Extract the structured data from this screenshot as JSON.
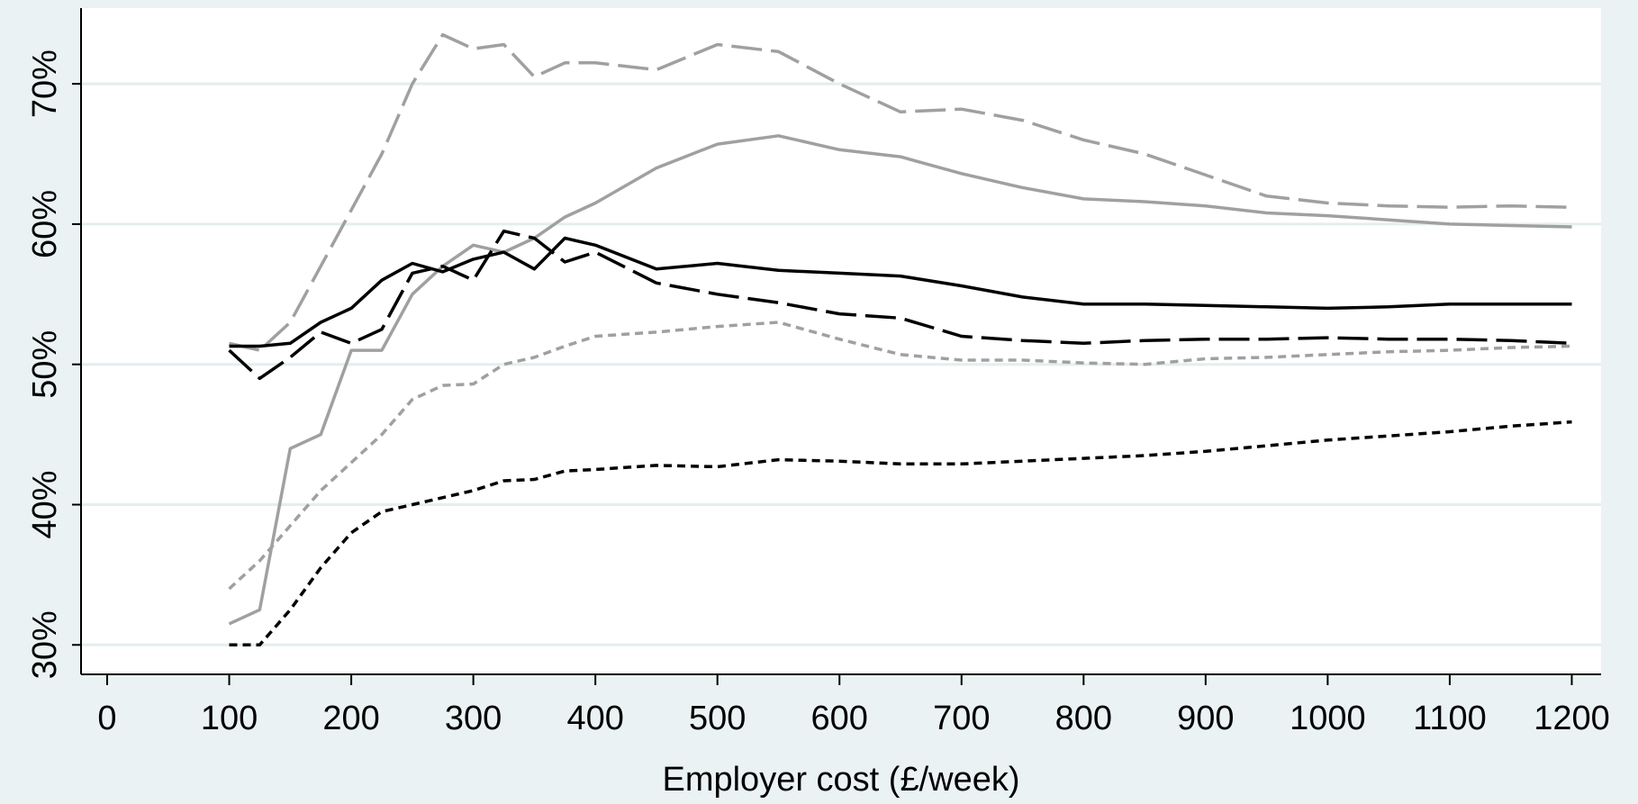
{
  "chart_data": {
    "type": "line",
    "xlabel": "Employer cost (£/week)",
    "x": [
      100,
      125,
      150,
      175,
      200,
      225,
      250,
      275,
      300,
      325,
      350,
      375,
      400,
      450,
      500,
      550,
      600,
      650,
      700,
      750,
      800,
      850,
      900,
      950,
      1000,
      1050,
      1100,
      1150,
      1200
    ],
    "series": [
      {
        "color": "#a0a0a0",
        "dash": "long",
        "values": [
          51.5,
          51,
          53,
          57,
          61,
          65,
          70,
          73.5,
          72.5,
          72.8,
          70.5,
          71.5,
          71.5,
          71,
          72.8,
          72.3,
          70,
          68,
          68.2,
          67.4,
          66,
          65,
          63.5,
          62,
          61.5,
          61.3,
          61.2,
          61.3,
          61.2
        ]
      },
      {
        "color": "#a0a0a0",
        "dash": "solid",
        "values": [
          31.5,
          32.5,
          44,
          45,
          51,
          51,
          55,
          57,
          58.5,
          58,
          59,
          60.5,
          61.5,
          64,
          65.7,
          66.3,
          65.3,
          64.8,
          63.6,
          62.6,
          61.8,
          61.6,
          61.3,
          60.8,
          60.6,
          60.3,
          60,
          59.9,
          59.8
        ]
      },
      {
        "color": "#a0a0a0",
        "dash": "short",
        "values": [
          34,
          36,
          38.5,
          41,
          43,
          45,
          47.5,
          48.5,
          48.6,
          50,
          50.5,
          51.3,
          52,
          52.3,
          52.7,
          53,
          51.8,
          50.7,
          50.3,
          50.3,
          50.1,
          50,
          50.4,
          50.5,
          50.7,
          50.9,
          51,
          51.2,
          51.3
        ]
      },
      {
        "color": "#000000",
        "dash": "solid",
        "values": [
          51.3,
          51.3,
          51.5,
          53,
          54,
          56,
          57.2,
          56.6,
          57.5,
          58,
          56.8,
          59,
          58.5,
          56.8,
          57.2,
          56.7,
          56.5,
          56.3,
          55.6,
          54.8,
          54.3,
          54.3,
          54.2,
          54.1,
          54,
          54.1,
          54.3,
          54.3,
          54.3
        ]
      },
      {
        "color": "#000000",
        "dash": "long",
        "values": [
          51,
          49,
          50.5,
          52.3,
          51.5,
          52.5,
          56.5,
          57,
          56,
          59.5,
          59,
          57.3,
          58,
          55.8,
          55,
          54.4,
          53.6,
          53.3,
          52,
          51.7,
          51.5,
          51.7,
          51.8,
          51.8,
          51.9,
          51.8,
          51.8,
          51.7,
          51.5
        ]
      },
      {
        "color": "#000000",
        "dash": "short",
        "values": [
          30,
          30,
          32.5,
          35.5,
          38,
          39.5,
          40,
          40.5,
          41,
          41.7,
          41.8,
          42.4,
          42.5,
          42.8,
          42.7,
          43.2,
          43.1,
          42.9,
          42.9,
          43.1,
          43.3,
          43.5,
          43.8,
          44.2,
          44.6,
          44.9,
          45.2,
          45.6,
          45.9
        ]
      }
    ],
    "xlim": [
      -21.4,
      1224
    ],
    "xticks": [
      0,
      100,
      200,
      300,
      400,
      500,
      600,
      700,
      800,
      900,
      1000,
      1100,
      1200
    ],
    "ylim": [
      27.9,
      75.4
    ],
    "yticks": [
      {
        "value": 30,
        "label": "30%"
      },
      {
        "value": 40,
        "label": "40%"
      },
      {
        "value": 50,
        "label": "50%"
      },
      {
        "value": 60,
        "label": "60%"
      },
      {
        "value": 70,
        "label": "70%"
      }
    ],
    "grid": true
  }
}
